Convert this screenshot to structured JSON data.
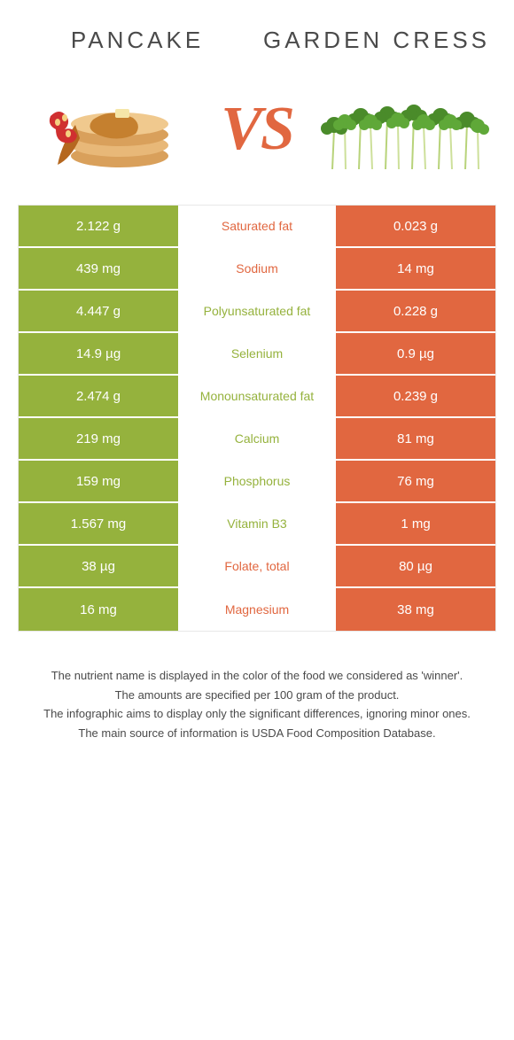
{
  "food_a": {
    "title": "PANCAKE"
  },
  "food_b": {
    "title": "GARDEN CRESS"
  },
  "vs_label": "VS",
  "colors": {
    "left": "#95b23d",
    "right": "#e16740",
    "mid_bg": "#ffffff",
    "title_text": "#4a4a4a",
    "footer_text": "#4a4a4a"
  },
  "table": {
    "rows": [
      {
        "left": "2.122 g",
        "label": "Saturated fat",
        "right": "0.023 g",
        "winner": "right"
      },
      {
        "left": "439 mg",
        "label": "Sodium",
        "right": "14 mg",
        "winner": "right"
      },
      {
        "left": "4.447 g",
        "label": "Polyunsaturated fat",
        "right": "0.228 g",
        "winner": "left"
      },
      {
        "left": "14.9 µg",
        "label": "Selenium",
        "right": "0.9 µg",
        "winner": "left"
      },
      {
        "left": "2.474 g",
        "label": "Monounsaturated fat",
        "right": "0.239 g",
        "winner": "left"
      },
      {
        "left": "219 mg",
        "label": "Calcium",
        "right": "81 mg",
        "winner": "left"
      },
      {
        "left": "159 mg",
        "label": "Phosphorus",
        "right": "76 mg",
        "winner": "left"
      },
      {
        "left": "1.567 mg",
        "label": "Vitamin B3",
        "right": "1 mg",
        "winner": "left"
      },
      {
        "left": "38 µg",
        "label": "Folate, total",
        "right": "80 µg",
        "winner": "right"
      },
      {
        "left": "16 mg",
        "label": "Magnesium",
        "right": "38 mg",
        "winner": "right"
      }
    ]
  },
  "footer": {
    "line1": "The nutrient name is displayed in the color of the food we considered as 'winner'.",
    "line2": "The amounts are specified per 100 gram of the product.",
    "line3": "The infographic aims to display only the significant differences, ignoring minor ones.",
    "line4": "The main source of information is USDA Food Composition Database."
  }
}
